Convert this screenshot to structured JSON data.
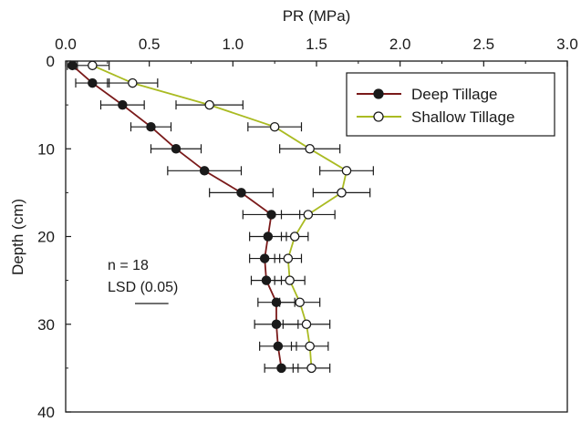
{
  "chart_data": {
    "type": "line",
    "orientation": "depth-profile (x on top, y increasing downward)",
    "xlabel": "PR (MPa)",
    "ylabel": "Depth (cm)",
    "xlim": [
      0.0,
      3.0
    ],
    "ylim": [
      0,
      40
    ],
    "x_ticks": [
      "0.0",
      "0.5",
      "1.0",
      "1.5",
      "2.0",
      "2.5",
      "3.0"
    ],
    "y_ticks": [
      "0",
      "10",
      "20",
      "30",
      "40"
    ],
    "legend_position": "top-right",
    "grid": false,
    "series": [
      {
        "name": "Deep Tillage",
        "color": "#7a1a1a",
        "marker": "filled-circle",
        "points": [
          {
            "depth": 0.5,
            "pr": 0.04,
            "err": 0.03
          },
          {
            "depth": 2.5,
            "pr": 0.16,
            "err": 0.1
          },
          {
            "depth": 5.0,
            "pr": 0.34,
            "err": 0.13
          },
          {
            "depth": 7.5,
            "pr": 0.51,
            "err": 0.12
          },
          {
            "depth": 10.0,
            "pr": 0.66,
            "err": 0.15
          },
          {
            "depth": 12.5,
            "pr": 0.83,
            "err": 0.22
          },
          {
            "depth": 15.0,
            "pr": 1.05,
            "err": 0.19
          },
          {
            "depth": 17.5,
            "pr": 1.23,
            "err": 0.17
          },
          {
            "depth": 20.0,
            "pr": 1.21,
            "err": 0.11
          },
          {
            "depth": 22.5,
            "pr": 1.19,
            "err": 0.09
          },
          {
            "depth": 25.0,
            "pr": 1.2,
            "err": 0.09
          },
          {
            "depth": 27.5,
            "pr": 1.26,
            "err": 0.11
          },
          {
            "depth": 30.0,
            "pr": 1.26,
            "err": 0.13
          },
          {
            "depth": 32.5,
            "pr": 1.27,
            "err": 0.11
          },
          {
            "depth": 35.0,
            "pr": 1.29,
            "err": 0.1
          }
        ]
      },
      {
        "name": "Shallow Tillage",
        "color": "#aabb22",
        "marker": "open-circle",
        "points": [
          {
            "depth": 0.5,
            "pr": 0.16,
            "err": 0.1
          },
          {
            "depth": 2.5,
            "pr": 0.4,
            "err": 0.15
          },
          {
            "depth": 5.0,
            "pr": 0.86,
            "err": 0.2
          },
          {
            "depth": 7.5,
            "pr": 1.25,
            "err": 0.16
          },
          {
            "depth": 10.0,
            "pr": 1.46,
            "err": 0.18
          },
          {
            "depth": 12.5,
            "pr": 1.68,
            "err": 0.16
          },
          {
            "depth": 15.0,
            "pr": 1.65,
            "err": 0.17
          },
          {
            "depth": 17.5,
            "pr": 1.45,
            "err": 0.16
          },
          {
            "depth": 20.0,
            "pr": 1.37,
            "err": 0.08
          },
          {
            "depth": 22.5,
            "pr": 1.33,
            "err": 0.08
          },
          {
            "depth": 25.0,
            "pr": 1.34,
            "err": 0.09
          },
          {
            "depth": 27.5,
            "pr": 1.4,
            "err": 0.12
          },
          {
            "depth": 30.0,
            "pr": 1.44,
            "err": 0.14
          },
          {
            "depth": 32.5,
            "pr": 1.46,
            "err": 0.11
          },
          {
            "depth": 35.0,
            "pr": 1.47,
            "err": 0.11
          }
        ]
      }
    ],
    "annotations": {
      "n_label": "n = 18",
      "lsd_label": "LSD (0.05)",
      "lsd_value": 0.2
    }
  }
}
